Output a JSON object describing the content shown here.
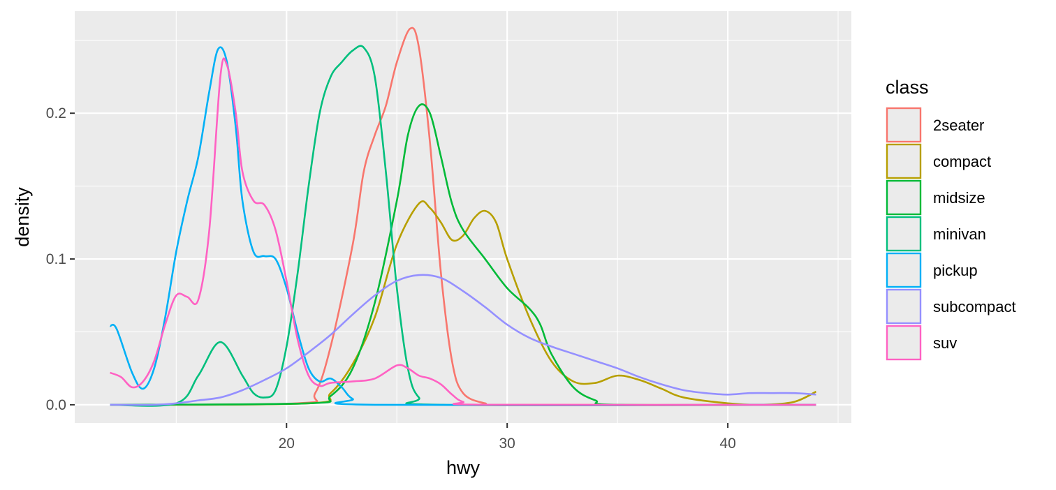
{
  "chart_data": {
    "type": "line",
    "subtype": "density",
    "title": "",
    "xlabel": "hwy",
    "ylabel": "density",
    "xlim": [
      10.4,
      45.6
    ],
    "ylim": [
      -0.0125,
      0.27
    ],
    "x_ticks": [
      20,
      30,
      40
    ],
    "x_tick_labels": [
      "20",
      "30",
      "40"
    ],
    "y_ticks": [
      0.0,
      0.1,
      0.2
    ],
    "y_tick_labels": [
      "0.0",
      "0.1",
      "0.2"
    ],
    "grid": true,
    "legend": {
      "title": "class",
      "position": "right"
    },
    "series": [
      {
        "name": "2seater",
        "color": "#F8766D",
        "points": [
          [
            12,
            0
          ],
          [
            20.5,
            0.001
          ],
          [
            21.3,
            0.008
          ],
          [
            22,
            0.04
          ],
          [
            23,
            0.11
          ],
          [
            23.5,
            0.16
          ],
          [
            24,
            0.185
          ],
          [
            24.5,
            0.205
          ],
          [
            25,
            0.235
          ],
          [
            25.6,
            0.258
          ],
          [
            26,
            0.245
          ],
          [
            26.5,
            0.18
          ],
          [
            27,
            0.09
          ],
          [
            27.5,
            0.03
          ],
          [
            28,
            0.008
          ],
          [
            29,
            0.001
          ],
          [
            30,
            0
          ],
          [
            44,
            0
          ]
        ]
      },
      {
        "name": "compact",
        "color": "#B79F00",
        "points": [
          [
            12,
            0
          ],
          [
            21,
            0.001
          ],
          [
            22,
            0.008
          ],
          [
            23,
            0.028
          ],
          [
            24,
            0.06
          ],
          [
            25,
            0.11
          ],
          [
            26,
            0.138
          ],
          [
            26.5,
            0.135
          ],
          [
            27,
            0.125
          ],
          [
            27.5,
            0.113
          ],
          [
            28,
            0.116
          ],
          [
            28.5,
            0.128
          ],
          [
            29,
            0.133
          ],
          [
            29.5,
            0.125
          ],
          [
            30,
            0.1
          ],
          [
            31,
            0.06
          ],
          [
            32,
            0.03
          ],
          [
            33,
            0.016
          ],
          [
            34,
            0.015
          ],
          [
            35,
            0.02
          ],
          [
            36,
            0.017
          ],
          [
            37,
            0.011
          ],
          [
            38,
            0.005
          ],
          [
            40,
            0.001
          ],
          [
            41.5,
            0
          ],
          [
            43,
            0.002
          ],
          [
            44,
            0.009
          ]
        ]
      },
      {
        "name": "midsize",
        "color": "#00BA38",
        "points": [
          [
            12,
            0
          ],
          [
            21,
            0.001
          ],
          [
            22,
            0.006
          ],
          [
            23,
            0.025
          ],
          [
            24,
            0.07
          ],
          [
            25,
            0.14
          ],
          [
            25.5,
            0.185
          ],
          [
            26,
            0.205
          ],
          [
            26.5,
            0.2
          ],
          [
            27,
            0.17
          ],
          [
            27.5,
            0.138
          ],
          [
            28,
            0.12
          ],
          [
            29,
            0.1
          ],
          [
            30,
            0.08
          ],
          [
            31,
            0.066
          ],
          [
            31.5,
            0.055
          ],
          [
            32,
            0.035
          ],
          [
            33,
            0.012
          ],
          [
            34,
            0.003
          ],
          [
            35,
            0
          ],
          [
            44,
            0
          ]
        ]
      },
      {
        "name": "minivan",
        "color": "#00BF7D",
        "points": [
          [
            12,
            0
          ],
          [
            15,
            0.001
          ],
          [
            16,
            0.02
          ],
          [
            17,
            0.043
          ],
          [
            18,
            0.02
          ],
          [
            18.5,
            0.008
          ],
          [
            19,
            0.005
          ],
          [
            19.5,
            0.01
          ],
          [
            20,
            0.04
          ],
          [
            20.5,
            0.09
          ],
          [
            21,
            0.15
          ],
          [
            21.5,
            0.2
          ],
          [
            22,
            0.225
          ],
          [
            22.5,
            0.235
          ],
          [
            23,
            0.243
          ],
          [
            23.5,
            0.245
          ],
          [
            24,
            0.225
          ],
          [
            24.5,
            0.16
          ],
          [
            25,
            0.08
          ],
          [
            25.5,
            0.025
          ],
          [
            26,
            0.005
          ],
          [
            27,
            0
          ],
          [
            44,
            0
          ]
        ]
      },
      {
        "name": "pickup",
        "color": "#00B0F6",
        "points": [
          [
            12,
            0.054
          ],
          [
            12.3,
            0.052
          ],
          [
            13,
            0.022
          ],
          [
            13.5,
            0.011
          ],
          [
            14,
            0.025
          ],
          [
            14.5,
            0.06
          ],
          [
            15,
            0.105
          ],
          [
            15.5,
            0.14
          ],
          [
            16,
            0.17
          ],
          [
            16.5,
            0.215
          ],
          [
            16.9,
            0.244
          ],
          [
            17.3,
            0.235
          ],
          [
            17.7,
            0.19
          ],
          [
            18,
            0.14
          ],
          [
            18.5,
            0.105
          ],
          [
            19,
            0.102
          ],
          [
            19.5,
            0.1
          ],
          [
            20,
            0.08
          ],
          [
            20.5,
            0.05
          ],
          [
            21,
            0.025
          ],
          [
            21.5,
            0.016
          ],
          [
            22,
            0.018
          ],
          [
            22.5,
            0.012
          ],
          [
            23,
            0.004
          ],
          [
            24,
            0
          ],
          [
            44,
            0
          ]
        ]
      },
      {
        "name": "subcompact",
        "color": "#9590FF",
        "points": [
          [
            12,
            0
          ],
          [
            14,
            0
          ],
          [
            15,
            0.001
          ],
          [
            16,
            0.003
          ],
          [
            17,
            0.005
          ],
          [
            18,
            0.01
          ],
          [
            19,
            0.017
          ],
          [
            20,
            0.025
          ],
          [
            21,
            0.036
          ],
          [
            22,
            0.048
          ],
          [
            23,
            0.062
          ],
          [
            24,
            0.075
          ],
          [
            25,
            0.085
          ],
          [
            26,
            0.089
          ],
          [
            27,
            0.087
          ],
          [
            28,
            0.078
          ],
          [
            29,
            0.067
          ],
          [
            30,
            0.055
          ],
          [
            31,
            0.046
          ],
          [
            32,
            0.04
          ],
          [
            33,
            0.035
          ],
          [
            34,
            0.03
          ],
          [
            35,
            0.025
          ],
          [
            36,
            0.019
          ],
          [
            37,
            0.014
          ],
          [
            38,
            0.01
          ],
          [
            39,
            0.008
          ],
          [
            40,
            0.007
          ],
          [
            41,
            0.008
          ],
          [
            42,
            0.008
          ],
          [
            43,
            0.008
          ],
          [
            44,
            0.007
          ]
        ]
      },
      {
        "name": "suv",
        "color": "#FF61C3",
        "points": [
          [
            12,
            0.022
          ],
          [
            12.5,
            0.019
          ],
          [
            13,
            0.012
          ],
          [
            13.5,
            0.016
          ],
          [
            14,
            0.03
          ],
          [
            14.5,
            0.055
          ],
          [
            15,
            0.075
          ],
          [
            15.5,
            0.074
          ],
          [
            16,
            0.072
          ],
          [
            16.5,
            0.12
          ],
          [
            17,
            0.225
          ],
          [
            17.3,
            0.233
          ],
          [
            17.7,
            0.2
          ],
          [
            18,
            0.16
          ],
          [
            18.5,
            0.14
          ],
          [
            19,
            0.137
          ],
          [
            19.5,
            0.12
          ],
          [
            20,
            0.085
          ],
          [
            20.5,
            0.045
          ],
          [
            21,
            0.02
          ],
          [
            21.5,
            0.013
          ],
          [
            22,
            0.015
          ],
          [
            23,
            0.016
          ],
          [
            24,
            0.018
          ],
          [
            25,
            0.027
          ],
          [
            25.5,
            0.025
          ],
          [
            26,
            0.02
          ],
          [
            26.5,
            0.018
          ],
          [
            27,
            0.014
          ],
          [
            27.5,
            0.007
          ],
          [
            28,
            0.002
          ],
          [
            29,
            0
          ],
          [
            44,
            0
          ]
        ]
      }
    ]
  }
}
